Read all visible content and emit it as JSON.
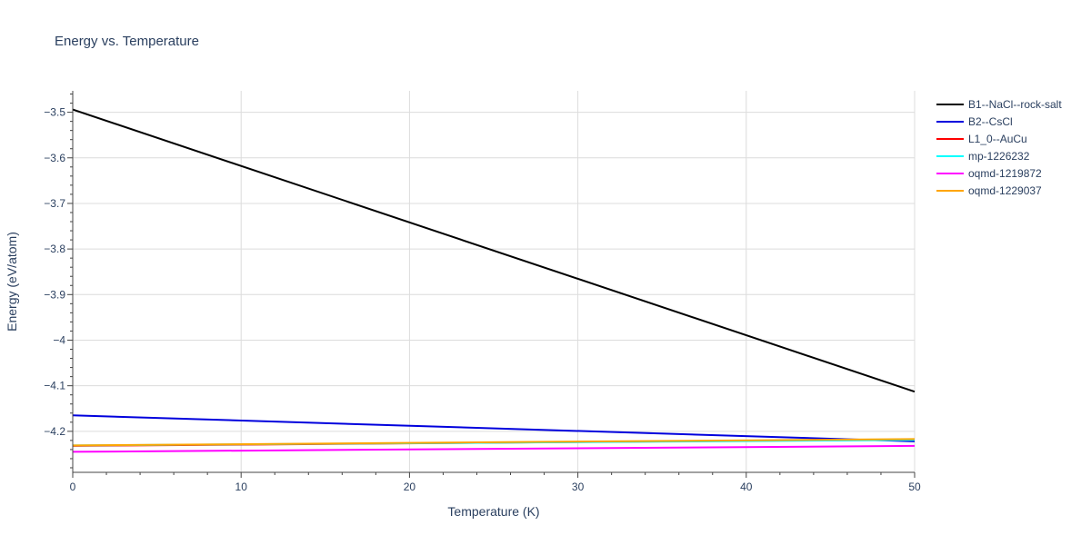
{
  "chart_data": {
    "type": "line",
    "title": "Energy vs. Temperature",
    "xlabel": "Temperature (K)",
    "ylabel": "Energy (eV/atom)",
    "xlim": [
      0,
      50
    ],
    "ylim": [
      -4.29,
      -3.453
    ],
    "x_ticks": [
      0,
      10,
      20,
      30,
      40,
      50
    ],
    "x_tick_labels": [
      "0",
      "10",
      "20",
      "30",
      "40",
      "50"
    ],
    "y_ticks": [
      -3.5,
      -3.6,
      -3.7,
      -3.8,
      -3.9,
      -4.0,
      -4.1,
      -4.2
    ],
    "y_tick_labels": [
      "−3.5",
      "−3.6",
      "−3.7",
      "−3.8",
      "−3.9",
      "−4",
      "−4.1",
      "−4.2"
    ],
    "grid": true,
    "legend_position": "right",
    "series": [
      {
        "name": "B1--NaCl--rock-salt",
        "color": "#000000",
        "x": [
          0,
          50
        ],
        "y": [
          -3.494,
          -4.113
        ]
      },
      {
        "name": "B2--CsCl",
        "color": "#0000dd",
        "x": [
          0,
          50
        ],
        "y": [
          -4.165,
          -4.222
        ]
      },
      {
        "name": "L1_0--AuCu",
        "color": "#ff0000",
        "x": [
          0,
          50
        ],
        "y": [
          -4.232,
          -4.218
        ]
      },
      {
        "name": "mp-1226232",
        "color": "#00ffff",
        "x": [
          0,
          50
        ],
        "y": [
          -4.231,
          -4.219
        ]
      },
      {
        "name": "oqmd-1219872",
        "color": "#ff00ff",
        "x": [
          0,
          50
        ],
        "y": [
          -4.245,
          -4.232
        ]
      },
      {
        "name": "oqmd-1229037",
        "color": "#ffa500",
        "x": [
          0,
          50
        ],
        "y": [
          -4.231,
          -4.217
        ]
      }
    ]
  }
}
